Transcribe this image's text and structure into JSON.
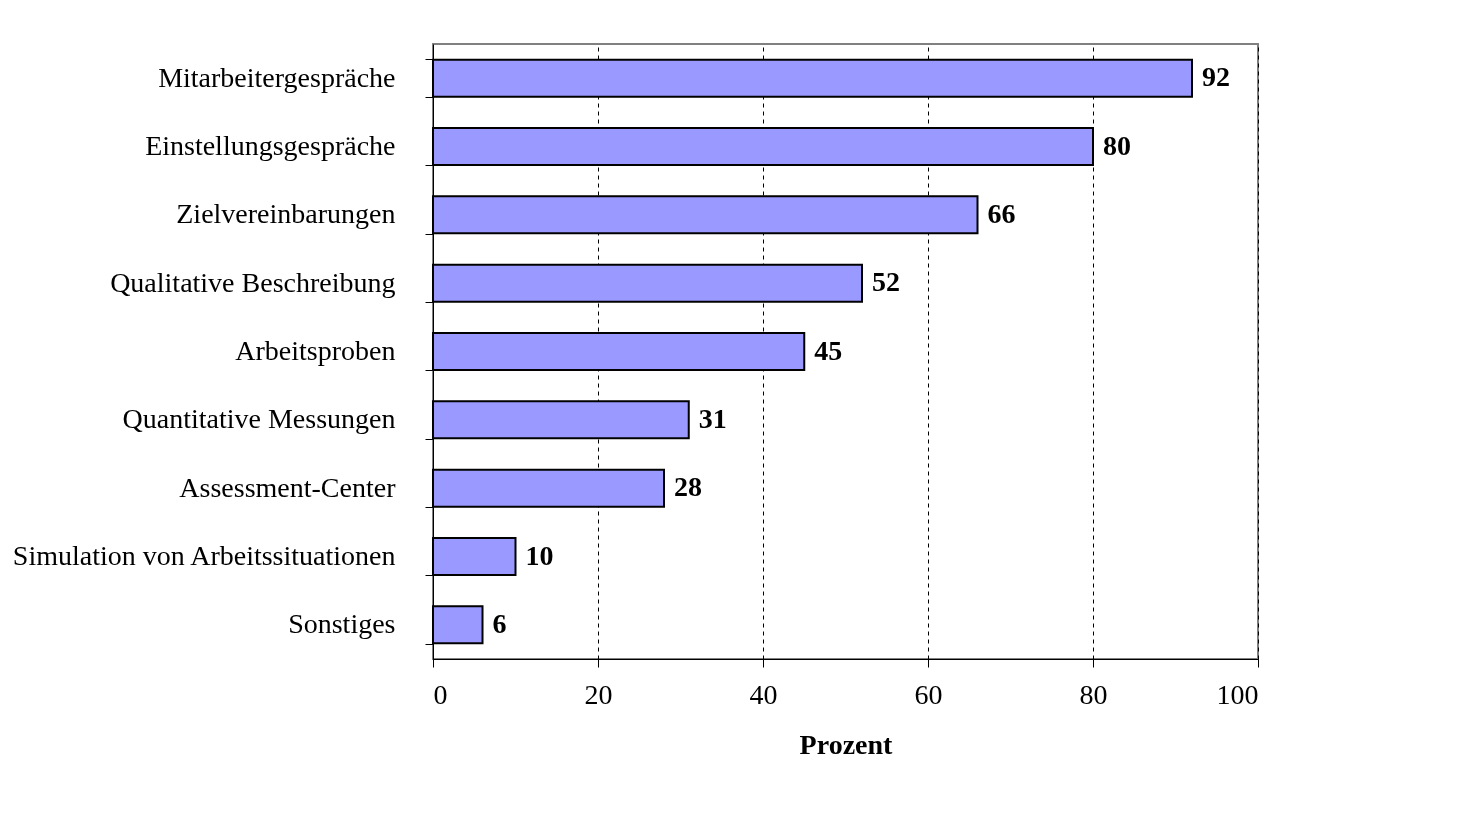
{
  "chart_data": {
    "type": "bar",
    "orientation": "horizontal",
    "xlabel": "Prozent",
    "categories": [
      "Mitarbeitergespräche",
      "Einstellungsgespräche",
      "Zielvereinbarungen",
      "Qualitative Beschreibung",
      "Arbeitsproben",
      "Quantitative Messungen",
      "Assessment-Center",
      "Simulation von Arbeitssituationen",
      "Sonstiges"
    ],
    "values": [
      92,
      80,
      66,
      52,
      45,
      31,
      28,
      10,
      6
    ],
    "color": "#9999ff",
    "xlim": [
      0,
      100
    ],
    "xticks": [
      0,
      20,
      40,
      60,
      80,
      100
    ],
    "grid": "x",
    "data_labels": true
  }
}
